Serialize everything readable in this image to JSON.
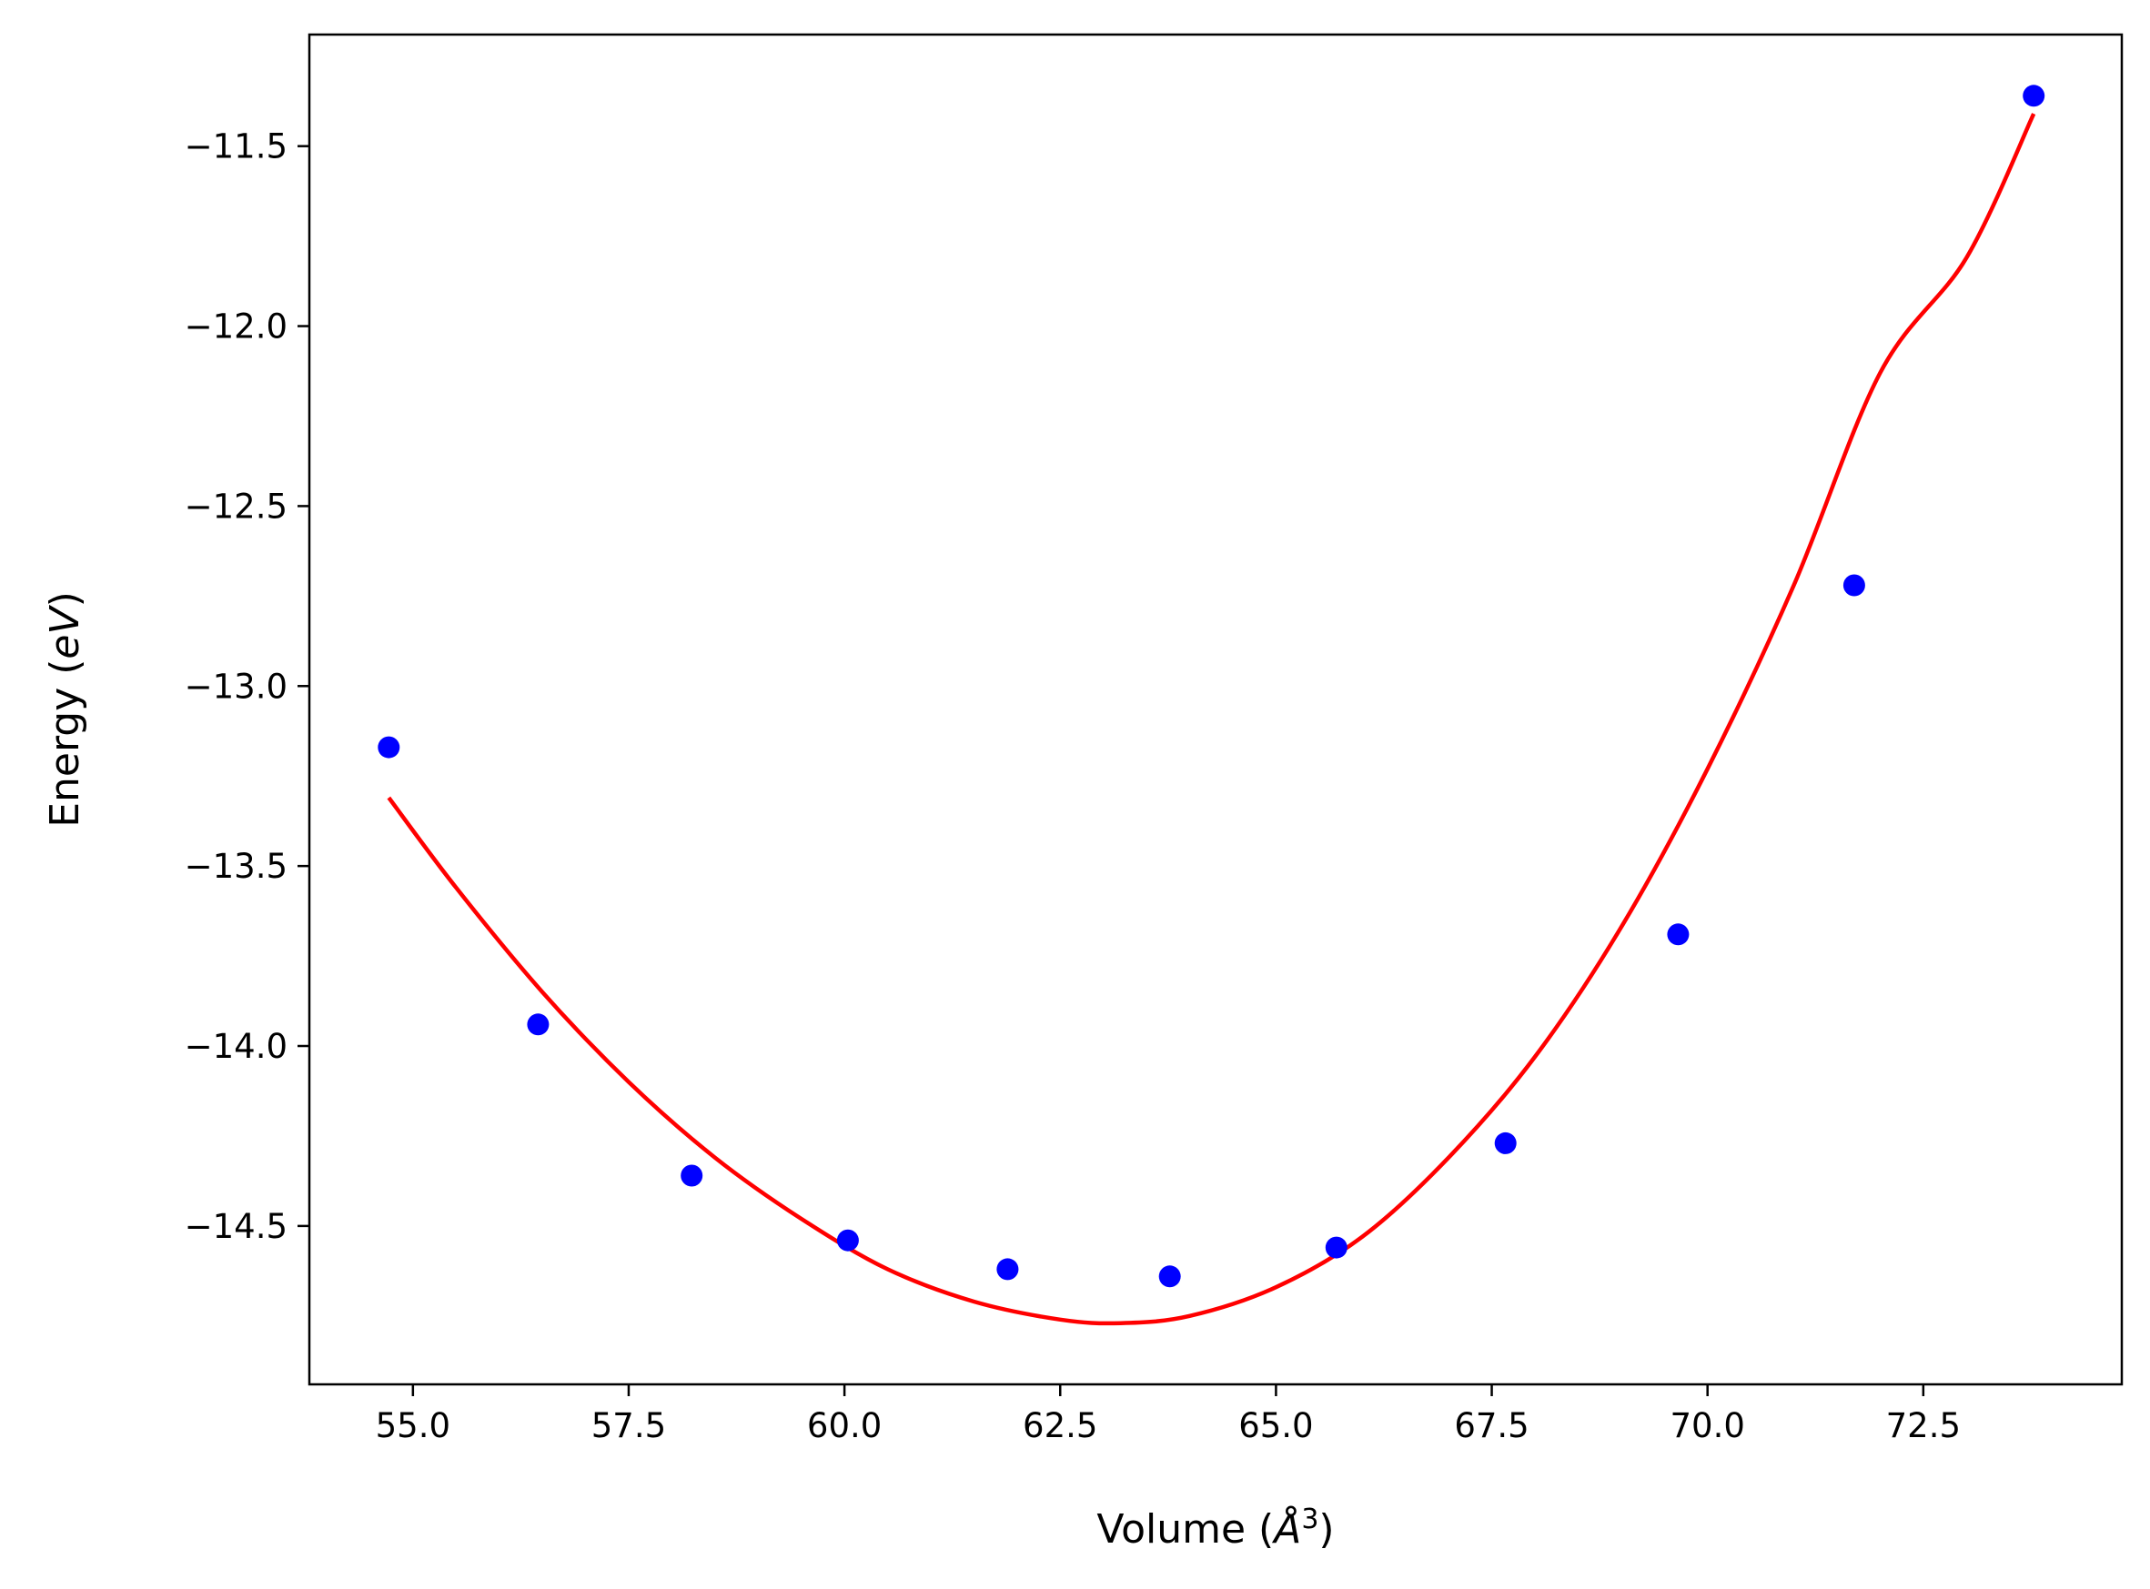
{
  "chart_data": {
    "type": "scatter",
    "title": "",
    "xlabel": "Volume (",
    "xlabel_unit": "Å",
    "xlabel_sup": "3",
    "xlabel_close": ")",
    "ylabel": "Energy (",
    "ylabel_unit": "eV",
    "ylabel_close": ")",
    "xlim": [
      53.8,
      74.8
    ],
    "ylim": [
      -14.94,
      -11.19
    ],
    "x_ticks": [
      55.0,
      57.5,
      60.0,
      62.5,
      65.0,
      67.5,
      70.0,
      72.5
    ],
    "x_tick_labels": [
      "55.0",
      "57.5",
      "60.0",
      "62.5",
      "65.0",
      "67.5",
      "70.0",
      "72.5"
    ],
    "y_ticks": [
      -11.5,
      -12.0,
      -12.5,
      -13.0,
      -13.5,
      -14.0,
      -14.5
    ],
    "y_tick_labels": [
      "−11.5",
      "−12.0",
      "−12.5",
      "−13.0",
      "−13.5",
      "−14.0",
      "−14.5"
    ],
    "grid": false,
    "series": [
      {
        "kind": "points",
        "color": "#0000ff",
        "x": [
          54.72,
          56.45,
          58.23,
          60.04,
          61.89,
          63.77,
          65.7,
          67.66,
          69.66,
          71.7,
          73.78
        ],
        "y": [
          -13.17,
          -13.94,
          -14.36,
          -14.54,
          -14.62,
          -14.64,
          -14.56,
          -14.27,
          -13.69,
          -12.72,
          -11.36
        ]
      },
      {
        "kind": "fit-curve",
        "color": "#ff0000",
        "x": [
          54.72,
          55.5,
          56.5,
          57.5,
          58.5,
          59.5,
          60.5,
          61.5,
          62.5,
          63.2,
          64.0,
          65.0,
          66.0,
          67.0,
          68.0,
          69.0,
          70.0,
          71.0,
          72.0,
          73.0,
          73.78
        ],
        "y": [
          -13.31,
          -13.56,
          -13.85,
          -14.1,
          -14.31,
          -14.48,
          -14.62,
          -14.71,
          -14.76,
          -14.77,
          -14.75,
          -14.67,
          -14.53,
          -14.31,
          -14.03,
          -13.67,
          -13.23,
          -12.72,
          -12.13,
          -11.81,
          -11.41
        ]
      }
    ]
  }
}
